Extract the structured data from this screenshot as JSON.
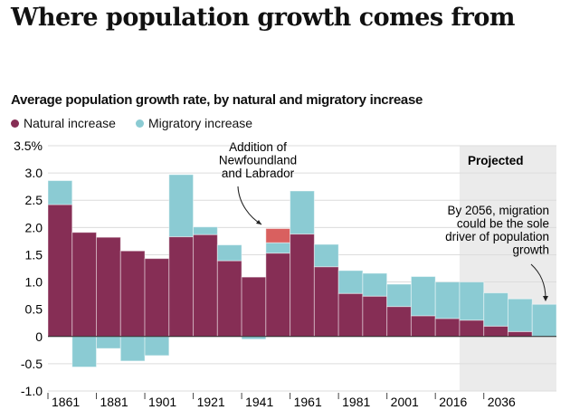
{
  "chart_data": {
    "type": "bar",
    "stacked": true,
    "title": "Where population growth comes from",
    "subtitle": "Average population growth rate, by natural and migratory increase",
    "ylim": [
      -1.0,
      3.5
    ],
    "y_ticks": [
      "3.5%",
      "3.0",
      "2.5",
      "2.0",
      "1.5",
      "1.0",
      "0.5",
      "0",
      "-0.5",
      "-1.0"
    ],
    "y_tick_values": [
      3.5,
      3.0,
      2.5,
      2.0,
      1.5,
      1.0,
      0.5,
      0,
      -0.5,
      -1.0
    ],
    "x_ticks": [
      {
        "label": "1861",
        "bar": 0
      },
      {
        "label": "1881",
        "bar": 2
      },
      {
        "label": "1901",
        "bar": 4
      },
      {
        "label": "1921",
        "bar": 6
      },
      {
        "label": "1941",
        "bar": 8
      },
      {
        "label": "1961",
        "bar": 10
      },
      {
        "label": "1981",
        "bar": 12
      },
      {
        "label": "2001",
        "bar": 14
      },
      {
        "label": "2016",
        "bar": 16
      },
      {
        "label": "2036",
        "bar": 18
      }
    ],
    "grid": true,
    "legend_position": "top-left",
    "series": [
      {
        "name": "Natural increase",
        "color": "#862e55",
        "values": [
          2.42,
          1.91,
          1.82,
          1.57,
          1.43,
          1.83,
          1.87,
          1.39,
          1.09,
          1.53,
          1.88,
          1.28,
          0.79,
          0.74,
          0.55,
          0.38,
          0.33,
          0.3,
          0.19,
          0.09,
          0.0
        ]
      },
      {
        "name": "Migratory increase",
        "color": "#8bcbd3",
        "values": [
          0.44,
          -0.56,
          -0.22,
          -0.45,
          -0.35,
          1.14,
          0.14,
          0.29,
          -0.05,
          0.19,
          0.79,
          0.41,
          0.42,
          0.42,
          0.41,
          0.72,
          0.67,
          0.7,
          0.61,
          0.6,
          0.59
        ]
      },
      {
        "color": "#d9605f",
        "values": [
          0,
          0,
          0,
          0,
          0,
          0,
          0,
          0,
          0,
          0.26,
          0,
          0,
          0,
          0,
          0,
          0,
          0,
          0,
          0,
          0,
          0
        ]
      }
    ],
    "projected_from_bar": 17,
    "projected_label": "Projected",
    "projected_color": "#ebebeb",
    "annotations": [
      {
        "lines": [
          "Addition of",
          "Newfoundland",
          "and Labrador"
        ],
        "bar": 9
      },
      {
        "lines": [
          "By 2056, migration",
          "could be the sole",
          "driver of population",
          "growth"
        ],
        "bar": 20
      }
    ]
  }
}
